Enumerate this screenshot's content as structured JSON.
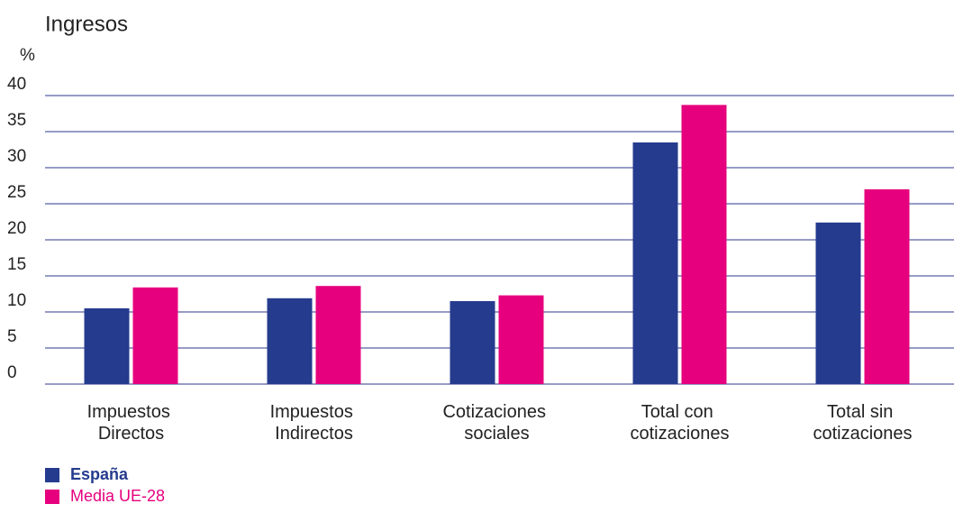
{
  "chart_data": {
    "type": "bar",
    "title": "Ingresos",
    "y_label": "%",
    "categories": [
      "Impuestos Directos",
      "Impuestos Indirectos",
      "Cotizaciones sociales",
      "Total con cotizaciones",
      "Total sin cotizaciones"
    ],
    "series": [
      {
        "name": "España",
        "color": "#253b8e",
        "values": [
          10.5,
          11.9,
          11.5,
          33.5,
          22.4
        ]
      },
      {
        "name": "Media UE-28",
        "color": "#e6007e",
        "values": [
          13.4,
          13.6,
          12.3,
          38.7,
          27.0
        ]
      }
    ],
    "ylim": [
      0,
      40
    ],
    "yticks": [
      0,
      5,
      10,
      15,
      20,
      25,
      30,
      35,
      40
    ],
    "grid": true,
    "legend": "bottom-left"
  }
}
